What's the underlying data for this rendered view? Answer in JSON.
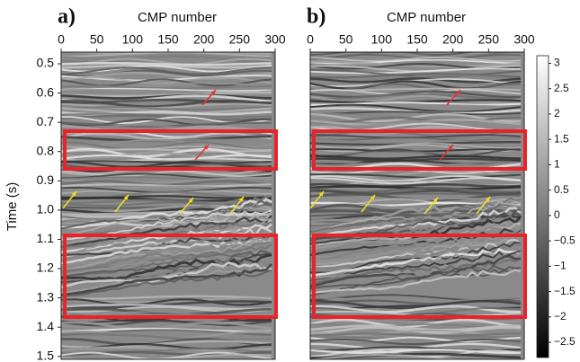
{
  "chart_data": [
    {
      "type": "image",
      "label": "a)",
      "xlabel": "CMP number",
      "ylabel": "Time (s)",
      "xlim": [
        0,
        300
      ],
      "xticks": [
        0,
        50,
        100,
        150,
        200,
        250,
        300
      ],
      "ylim": [
        0.46,
        1.51
      ],
      "yticks": [
        0.5,
        0.6,
        0.7,
        0.8,
        0.9,
        {
          "value": 1,
          "label": "1.0"
        },
        1.1,
        1.2,
        1.3,
        1.4,
        1.5
      ]
    },
    {
      "type": "image",
      "label": "b)",
      "xlabel": "CMP number",
      "xlim": [
        0,
        300
      ],
      "xticks": [
        0,
        50,
        100,
        150,
        200,
        250,
        300
      ],
      "ylim": [
        0.46,
        1.51
      ],
      "colorbar": {
        "clim": [
          -2.8,
          3.15
        ],
        "ticks": [
          {
            "value": -2.5,
            "label": "−2.5"
          },
          {
            "value": -2,
            "label": "−2"
          },
          {
            "value": -1.5,
            "label": "−1.5"
          },
          {
            "value": -1,
            "label": "−1"
          },
          {
            "value": -0.5,
            "label": "−0.5"
          },
          0,
          0.5,
          1,
          1.5,
          2,
          2.5,
          3
        ]
      }
    }
  ]
}
